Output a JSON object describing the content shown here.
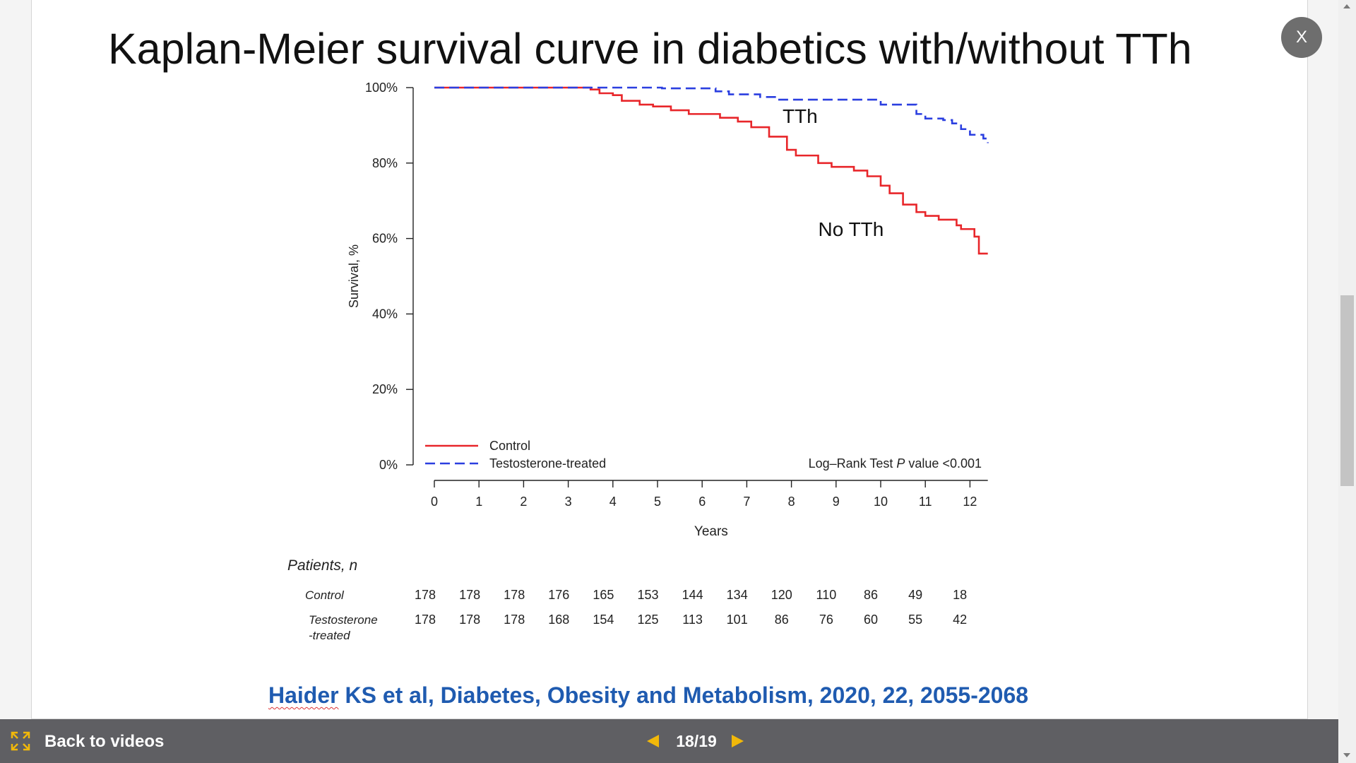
{
  "slide": {
    "title": "Kaplan-Meier survival curve in diabetics with/without TTh",
    "citation_author": "Haider",
    "citation_rest": " KS et al, Diabetes, Obesity and Metabolism, 2020, 22, 2055-2068"
  },
  "chart_data": {
    "type": "line",
    "title": "",
    "xlabel": "Years",
    "ylabel": "Survival, %",
    "xlim": [
      0,
      12.4
    ],
    "ylim": [
      0,
      100
    ],
    "x_ticks": [
      "0",
      "1",
      "2",
      "3",
      "4",
      "5",
      "6",
      "7",
      "8",
      "9",
      "10",
      "11",
      "12"
    ],
    "y_ticks": [
      "0%",
      "20%",
      "40%",
      "60%",
      "80%",
      "100%"
    ],
    "series": [
      {
        "name": "Control",
        "annotation": "No TTh",
        "color": "#e8262a",
        "style": "solid",
        "points": [
          [
            0,
            100
          ],
          [
            3.3,
            100
          ],
          [
            3.5,
            99.5
          ],
          [
            3.7,
            98.5
          ],
          [
            4.0,
            98.0
          ],
          [
            4.2,
            96.5
          ],
          [
            4.6,
            95.5
          ],
          [
            4.9,
            95.0
          ],
          [
            5.3,
            94.0
          ],
          [
            5.7,
            93.0
          ],
          [
            6.4,
            92.0
          ],
          [
            6.8,
            91.0
          ],
          [
            7.1,
            89.5
          ],
          [
            7.5,
            87.0
          ],
          [
            7.9,
            83.5
          ],
          [
            8.1,
            82.0
          ],
          [
            8.6,
            80.0
          ],
          [
            8.9,
            79.0
          ],
          [
            9.4,
            78.0
          ],
          [
            9.7,
            76.5
          ],
          [
            10.0,
            74.0
          ],
          [
            10.2,
            72.0
          ],
          [
            10.5,
            69.0
          ],
          [
            10.8,
            67.0
          ],
          [
            11.0,
            66.0
          ],
          [
            11.3,
            65.0
          ],
          [
            11.7,
            63.5
          ],
          [
            11.8,
            62.5
          ],
          [
            12.1,
            60.5
          ],
          [
            12.2,
            56.0
          ],
          [
            12.4,
            56.0
          ]
        ]
      },
      {
        "name": "Testosterone-treated",
        "annotation": "TTh",
        "color": "#2b3fe0",
        "style": "dashed",
        "points": [
          [
            0,
            100
          ],
          [
            4.8,
            100
          ],
          [
            5.1,
            99.8
          ],
          [
            6.3,
            99.0
          ],
          [
            6.6,
            98.2
          ],
          [
            7.3,
            97.5
          ],
          [
            7.7,
            96.8
          ],
          [
            9.5,
            96.8
          ],
          [
            10.0,
            95.5
          ],
          [
            10.6,
            95.5
          ],
          [
            10.8,
            93.0
          ],
          [
            11.0,
            91.8
          ],
          [
            11.4,
            91.4
          ],
          [
            11.6,
            90.5
          ],
          [
            11.8,
            89.0
          ],
          [
            12.0,
            87.5
          ],
          [
            12.3,
            86.5
          ],
          [
            12.4,
            85.3
          ]
        ]
      }
    ],
    "legend": [
      {
        "label": "Control",
        "color": "#e8262a",
        "style": "solid"
      },
      {
        "label": "Testosterone-treated",
        "color": "#2b3fe0",
        "style": "dashed"
      }
    ],
    "legend_position": "bottom-left",
    "log_rank_prefix": "Log–Rank Test ",
    "log_rank_p": "P",
    "log_rank_suffix": " value <0.001",
    "risk_table": {
      "header": "Patients, n",
      "rows": [
        {
          "label_line1": "Control",
          "label_line2": "",
          "values": [
            "178",
            "178",
            "178",
            "176",
            "165",
            "153",
            "144",
            "134",
            "120",
            "110",
            "86",
            "49",
            "18"
          ]
        },
        {
          "label_line1": "Testosterone",
          "label_line2": "-treated",
          "values": [
            "178",
            "178",
            "178",
            "168",
            "154",
            "125",
            "113",
            "101",
            "86",
            "76",
            "60",
            "55",
            "42"
          ]
        }
      ]
    }
  },
  "footer": {
    "back_label": "Back to videos",
    "page_counter": "18/19"
  },
  "close_label": "X"
}
